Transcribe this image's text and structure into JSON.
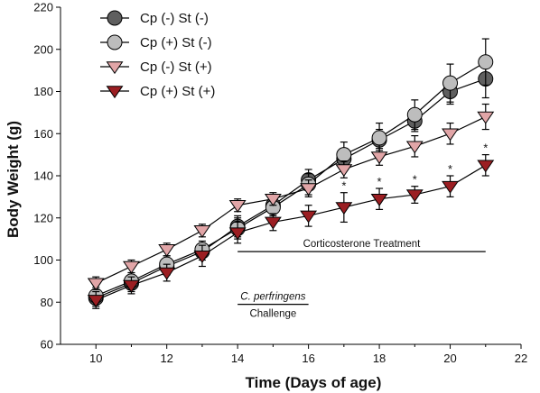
{
  "chart_data": {
    "type": "line",
    "xlabel": "Time (Days of age)",
    "ylabel": "Body Weight (g)",
    "xlim": [
      9,
      22
    ],
    "ylim": [
      60,
      220
    ],
    "xticks": [
      10,
      12,
      14,
      16,
      18,
      20,
      22
    ],
    "yticks": [
      60,
      80,
      100,
      120,
      140,
      160,
      180,
      200,
      220
    ],
    "x": [
      10,
      11,
      12,
      13,
      14,
      15,
      16,
      17,
      18,
      19,
      20,
      21
    ],
    "series": [
      {
        "name": "Cp (-)  St (-)",
        "marker": "circle",
        "color": "#5f5f5f",
        "values": [
          82,
          89,
          97,
          104,
          116,
          126,
          138,
          148,
          157,
          166,
          180,
          186
        ],
        "errors": [
          4,
          4,
          4,
          4,
          5,
          4,
          5,
          5,
          5,
          5,
          6,
          9
        ]
      },
      {
        "name": "Cp (+)  St (-)",
        "marker": "circle",
        "color": "#bdbdbd",
        "values": [
          83,
          90,
          98,
          105,
          115,
          125,
          136,
          150,
          158,
          169,
          184,
          194
        ],
        "errors": [
          4,
          4,
          4,
          4,
          5,
          4,
          5,
          6,
          7,
          7,
          9,
          11
        ]
      },
      {
        "name": "Cp (-)  St (+)",
        "marker": "triangle-down",
        "color": "#e1a5a7",
        "values": [
          89,
          97,
          105,
          114,
          126,
          129,
          134,
          143,
          149,
          154,
          160,
          168
        ],
        "errors": [
          3,
          3,
          3,
          3,
          3,
          3,
          4,
          4,
          4,
          5,
          5,
          6
        ]
      },
      {
        "name": "Cp (+) St (+)",
        "marker": "triangle-down",
        "color": "#9b1e22",
        "values": [
          81,
          88,
          94,
          102,
          113,
          118,
          121,
          125,
          129,
          131,
          135,
          145
        ],
        "errors": [
          4,
          4,
          4,
          5,
          5,
          4,
          5,
          7,
          5,
          4,
          5,
          5
        ]
      }
    ],
    "significance_marks": [
      {
        "x": 17,
        "label": "*"
      },
      {
        "x": 18,
        "label": "*"
      },
      {
        "x": 19,
        "label": "*"
      },
      {
        "x": 20,
        "label": "*"
      },
      {
        "x": 21,
        "label": "*"
      }
    ],
    "annotations": [
      {
        "text": "Corticosterone Treatment",
        "x_start": 14,
        "x_end": 21,
        "y": 104
      },
      {
        "text": "C. perfringens",
        "italic": true,
        "x_start": 14,
        "x_end": 16,
        "y": 79
      },
      {
        "text": "Challenge",
        "x_start": 14,
        "x_end": 16,
        "y": 79
      }
    ],
    "legend_position": "top-left"
  }
}
